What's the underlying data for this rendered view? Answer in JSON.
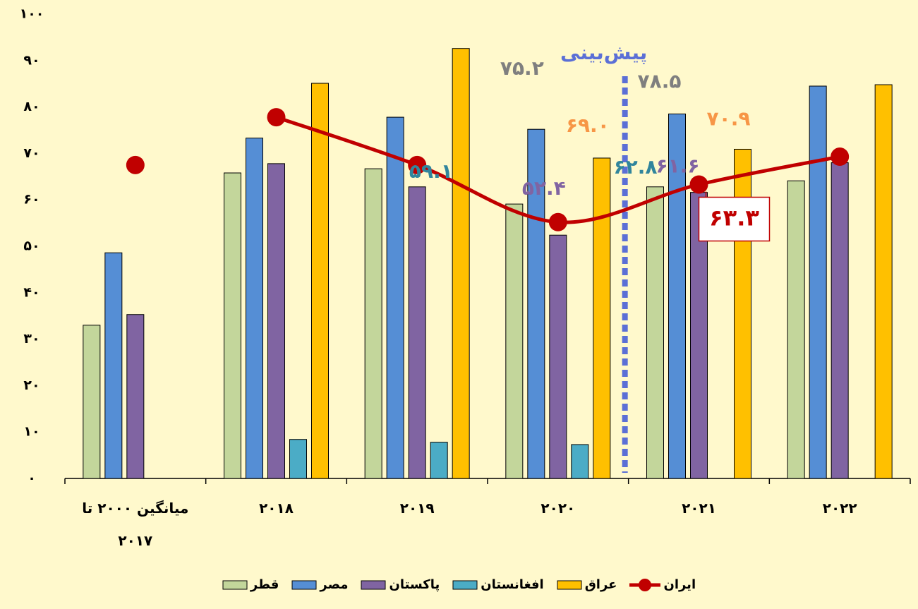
{
  "chart_data": {
    "type": "bar",
    "categories": [
      "میانگین ۲۰۰۰ تا ۲۰۱۷",
      "۲۰۱۸",
      "۲۰۱۹",
      "۲۰۲۰",
      "۲۰۲۱",
      "۲۰۲۲"
    ],
    "ylim": [
      0,
      100
    ],
    "yticks": [
      {
        "value": 0,
        "label": "۰"
      },
      {
        "value": 10,
        "label": "۱۰"
      },
      {
        "value": 20,
        "label": "۲۰"
      },
      {
        "value": 30,
        "label": "۳۰"
      },
      {
        "value": 40,
        "label": "۴۰"
      },
      {
        "value": 50,
        "label": "۵۰"
      },
      {
        "value": 60,
        "label": "۶۰"
      },
      {
        "value": 70,
        "label": "۷۰"
      },
      {
        "value": 80,
        "label": "۸۰"
      },
      {
        "value": 90,
        "label": "۹۰"
      },
      {
        "value": 100,
        "label": "۱۰۰"
      }
    ],
    "annotations": [
      {
        "text": "پیش‌بینی"
      }
    ],
    "legend": "bottom",
    "series": [
      {
        "name": "قطر",
        "type": "bar",
        "color": "#c3d69b",
        "label_color": "#31859c",
        "values": [
          33.0,
          65.8,
          66.7,
          59.1,
          62.8,
          64.1
        ],
        "value_labels": [
          null,
          null,
          null,
          "۵۹.۱",
          "۶۲.۸",
          null
        ]
      },
      {
        "name": "مصر",
        "type": "bar",
        "color": "#558ed5",
        "label_color": "#7f7f7f",
        "values": [
          48.6,
          73.3,
          77.8,
          75.2,
          78.5,
          84.5
        ],
        "value_labels": [
          null,
          null,
          null,
          "۷۵.۲",
          "۷۸.۵",
          null
        ]
      },
      {
        "name": "پاکستان",
        "type": "bar",
        "color": "#8064a2",
        "label_color": "#8064a2",
        "values": [
          35.3,
          67.8,
          62.8,
          52.4,
          61.6,
          68.0
        ],
        "value_labels": [
          null,
          null,
          null,
          "۵۲.۴",
          "۶۱.۶",
          null
        ]
      },
      {
        "name": "افغانستان",
        "type": "bar",
        "color": "#4bacc6",
        "values": [
          null,
          8.4,
          7.8,
          7.3,
          null,
          null
        ]
      },
      {
        "name": "عراق",
        "type": "bar",
        "color": "#ffc000",
        "label_color": "#f79646",
        "values": [
          null,
          85.1,
          92.6,
          69.0,
          70.9,
          84.8
        ],
        "value_labels": [
          null,
          null,
          null,
          "۶۹.۰",
          "۷۰.۹",
          null
        ]
      },
      {
        "name": "ایران",
        "type": "line",
        "color": "#c00000",
        "label_color": "#c00000",
        "values": [
          67.5,
          77.8,
          67.5,
          55.2,
          63.3,
          69.3
        ],
        "value_labels": [
          null,
          null,
          null,
          null,
          "۶۳.۳",
          null
        ]
      }
    ]
  }
}
